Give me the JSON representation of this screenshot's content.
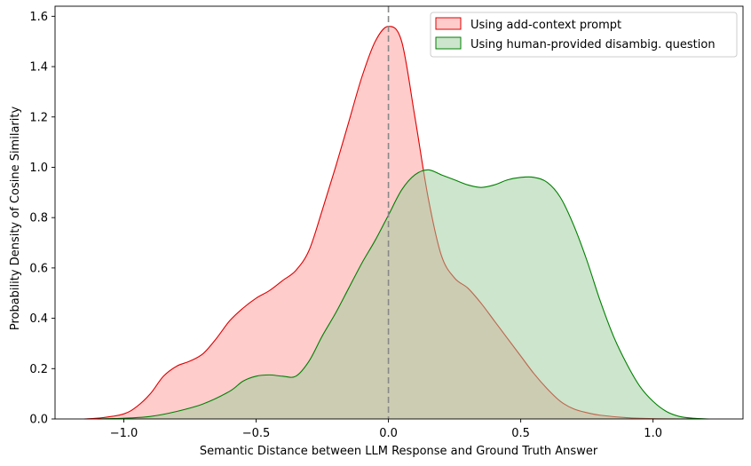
{
  "chart_data": {
    "type": "area",
    "title": "",
    "xlabel": "Semantic Distance between LLM Response and Ground Truth Answer",
    "ylabel": "Probability Density of Cosine Similarity",
    "xlim": [
      -1.26,
      1.34
    ],
    "ylim": [
      0.0,
      1.64
    ],
    "xticks": [
      -1.0,
      -0.5,
      0.0,
      0.5,
      1.0
    ],
    "xtick_labels": [
      "−1.0",
      "−0.5",
      "0.0",
      "0.5",
      "1.0"
    ],
    "yticks": [
      0.0,
      0.2,
      0.4,
      0.6,
      0.8,
      1.0,
      1.2,
      1.4,
      1.6
    ],
    "ytick_labels": [
      "0.0",
      "0.2",
      "0.4",
      "0.6",
      "0.8",
      "1.0",
      "1.2",
      "1.4",
      "1.6"
    ],
    "grid": false,
    "legend_position": "top-right",
    "vline": {
      "x": 0.0,
      "style": "dashed",
      "color": "#888888"
    },
    "series": [
      {
        "name": "Using add-context prompt",
        "line_color": "#e00000",
        "fill_color": "#ff9999",
        "fill_opacity": 0.5,
        "x": [
          -1.15,
          -1.08,
          -1.0,
          -0.95,
          -0.9,
          -0.85,
          -0.8,
          -0.75,
          -0.7,
          -0.65,
          -0.6,
          -0.55,
          -0.5,
          -0.45,
          -0.4,
          -0.35,
          -0.3,
          -0.25,
          -0.2,
          -0.15,
          -0.1,
          -0.05,
          0.0,
          0.05,
          0.1,
          0.15,
          0.2,
          0.25,
          0.3,
          0.35,
          0.4,
          0.45,
          0.5,
          0.55,
          0.6,
          0.65,
          0.7,
          0.75,
          0.8,
          0.9,
          1.0,
          1.1,
          1.18
        ],
        "y": [
          0.0,
          0.005,
          0.02,
          0.05,
          0.1,
          0.17,
          0.21,
          0.23,
          0.26,
          0.32,
          0.39,
          0.44,
          0.48,
          0.51,
          0.55,
          0.59,
          0.67,
          0.83,
          1.0,
          1.18,
          1.36,
          1.5,
          1.56,
          1.5,
          1.2,
          0.88,
          0.65,
          0.56,
          0.52,
          0.46,
          0.39,
          0.32,
          0.25,
          0.18,
          0.12,
          0.07,
          0.04,
          0.025,
          0.015,
          0.005,
          0.001,
          0.0,
          0.0
        ]
      },
      {
        "name": "Using human-provided disambig. question",
        "line_color": "#008000",
        "fill_color": "#99cc99",
        "fill_opacity": 0.5,
        "x": [
          -1.1,
          -1.0,
          -0.9,
          -0.8,
          -0.7,
          -0.6,
          -0.55,
          -0.5,
          -0.45,
          -0.4,
          -0.35,
          -0.3,
          -0.25,
          -0.2,
          -0.15,
          -0.1,
          -0.05,
          0.0,
          0.05,
          0.1,
          0.15,
          0.2,
          0.25,
          0.3,
          0.35,
          0.4,
          0.45,
          0.5,
          0.55,
          0.6,
          0.65,
          0.7,
          0.75,
          0.8,
          0.85,
          0.9,
          0.95,
          1.0,
          1.05,
          1.1,
          1.15,
          1.21
        ],
        "y": [
          0.0,
          0.003,
          0.01,
          0.03,
          0.06,
          0.11,
          0.15,
          0.17,
          0.175,
          0.17,
          0.17,
          0.23,
          0.33,
          0.42,
          0.52,
          0.62,
          0.71,
          0.81,
          0.91,
          0.97,
          0.99,
          0.97,
          0.95,
          0.93,
          0.92,
          0.93,
          0.95,
          0.96,
          0.96,
          0.94,
          0.88,
          0.77,
          0.63,
          0.47,
          0.33,
          0.22,
          0.13,
          0.07,
          0.03,
          0.01,
          0.003,
          0.0
        ]
      }
    ]
  }
}
